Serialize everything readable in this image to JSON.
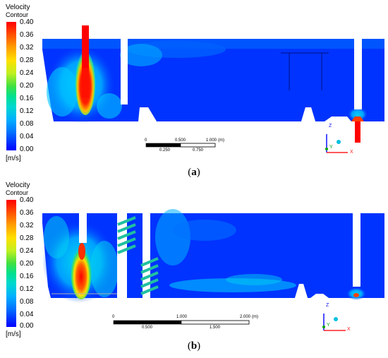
{
  "colorscale": [
    "#ff0000",
    "#ff4000",
    "#ff8000",
    "#ffbf00",
    "#ffff00",
    "#bfff00",
    "#40ff40",
    "#00e680",
    "#00e6c0",
    "#00bfff",
    "#0080ff",
    "#0040ff",
    "#0000ff"
  ],
  "panels": [
    {
      "legend_title": "Velocity",
      "legend_subtitle": "Contour",
      "ticks": [
        "0.40",
        "0.36",
        "0.32",
        "0.28",
        "0.24",
        "0.20",
        "0.16",
        "0.12",
        "0.08",
        "0.04",
        "0.00"
      ],
      "unit": "[m/s]",
      "caption_prefix": "(",
      "caption_letter": "a",
      "caption_suffix": ")",
      "scale_top": [
        "0",
        "0.500",
        "1.000",
        "(m)"
      ],
      "scale_bottom": [
        "0.250",
        "0.750"
      ],
      "axis_z": "Z",
      "axis_y": "Y",
      "axis_x": "X"
    },
    {
      "legend_title": "Velocity",
      "legend_subtitle": "Contour",
      "ticks": [
        "0.40",
        "0.36",
        "0.32",
        "0.28",
        "0.24",
        "0.20",
        "0.16",
        "0.12",
        "0.08",
        "0.04",
        "0.00"
      ],
      "unit": "[m/s]",
      "caption_prefix": "(",
      "caption_letter": "b",
      "caption_suffix": ")",
      "scale_top": [
        "0",
        "1.000",
        "2.000",
        "(m)"
      ],
      "scale_bottom": [
        "0.500",
        "1.500"
      ],
      "axis_z": "Z",
      "axis_y": "Y",
      "axis_x": "X"
    }
  ]
}
